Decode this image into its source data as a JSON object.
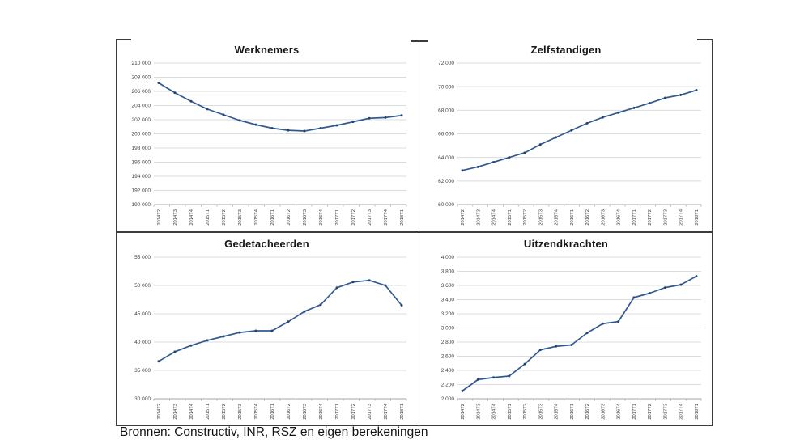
{
  "caption": "Bronnen: Constructiv, INR, RSZ en eigen berekeningen",
  "colors": {
    "line": "#315A93",
    "marker": "#24456F",
    "grid": "#DCDCDC",
    "axis": "#A6A6A6",
    "tick_text": "#3F3F3F",
    "border": "#3C3C3C"
  },
  "chart_data": [
    {
      "type": "line",
      "title": "Werknemers",
      "categories": [
        "2014T2",
        "2014T3",
        "2014T4",
        "2015T1",
        "2015T2",
        "2015T3",
        "2015T4",
        "2016T1",
        "2016T2",
        "2016T3",
        "2016T4",
        "2017T1",
        "2017T2",
        "2017T3",
        "2017T4",
        "2018T1"
      ],
      "values": [
        207200,
        205800,
        204600,
        203500,
        202700,
        201900,
        201300,
        200800,
        200500,
        200400,
        200800,
        201200,
        201700,
        202200,
        202300,
        202600
      ],
      "xlabel": "",
      "ylabel": "",
      "ylim": [
        190000,
        210000
      ],
      "ystep": 2000,
      "grid": true,
      "legend": "none"
    },
    {
      "type": "line",
      "title": "Zelfstandigen",
      "categories": [
        "2014T2",
        "2014T3",
        "2014T4",
        "2015T1",
        "2015T2",
        "2015T3",
        "2015T4",
        "2016T1",
        "2016T2",
        "2016T3",
        "2016T4",
        "2017T1",
        "2017T2",
        "2017T3",
        "2017T4",
        "2018T1"
      ],
      "values": [
        62900,
        63200,
        63600,
        64000,
        64400,
        65100,
        65700,
        66300,
        66900,
        67400,
        67800,
        68200,
        68600,
        69050,
        69300,
        69700
      ],
      "xlabel": "",
      "ylabel": "",
      "ylim": [
        60000,
        72000
      ],
      "ystep": 2000,
      "grid": true,
      "legend": "none"
    },
    {
      "type": "line",
      "title": "Gedetacheerden",
      "categories": [
        "2014T2",
        "2014T3",
        "2014T4",
        "2015T1",
        "2015T2",
        "2015T3",
        "2015T4",
        "2016T1",
        "2016T2",
        "2016T3",
        "2016T4",
        "2017T1",
        "2017T2",
        "2017T3",
        "2017T4",
        "2018T1"
      ],
      "values": [
        36600,
        38300,
        39400,
        40300,
        41000,
        41700,
        42000,
        42000,
        43600,
        45400,
        46600,
        49600,
        50600,
        50900,
        50000,
        46500
      ],
      "xlabel": "",
      "ylabel": "",
      "ylim": [
        30000,
        55000
      ],
      "ystep": 5000,
      "grid": true,
      "legend": "none"
    },
    {
      "type": "line",
      "title": "Uitzendkrachten",
      "categories": [
        "2014T2",
        "2014T3",
        "2014T4",
        "2015T1",
        "2015T2",
        "2015T3",
        "2015T4",
        "2016T1",
        "2016T2",
        "2016T3",
        "2016T4",
        "2017T1",
        "2017T2",
        "2017T3",
        "2017T4",
        "2018T1"
      ],
      "values": [
        2110,
        2270,
        2300,
        2320,
        2490,
        2690,
        2740,
        2760,
        2930,
        3060,
        3090,
        3430,
        3490,
        3570,
        3610,
        3730
      ],
      "xlabel": "",
      "ylabel": "",
      "ylim": [
        2000,
        4000
      ],
      "ystep": 200,
      "grid": true,
      "legend": "none"
    }
  ]
}
